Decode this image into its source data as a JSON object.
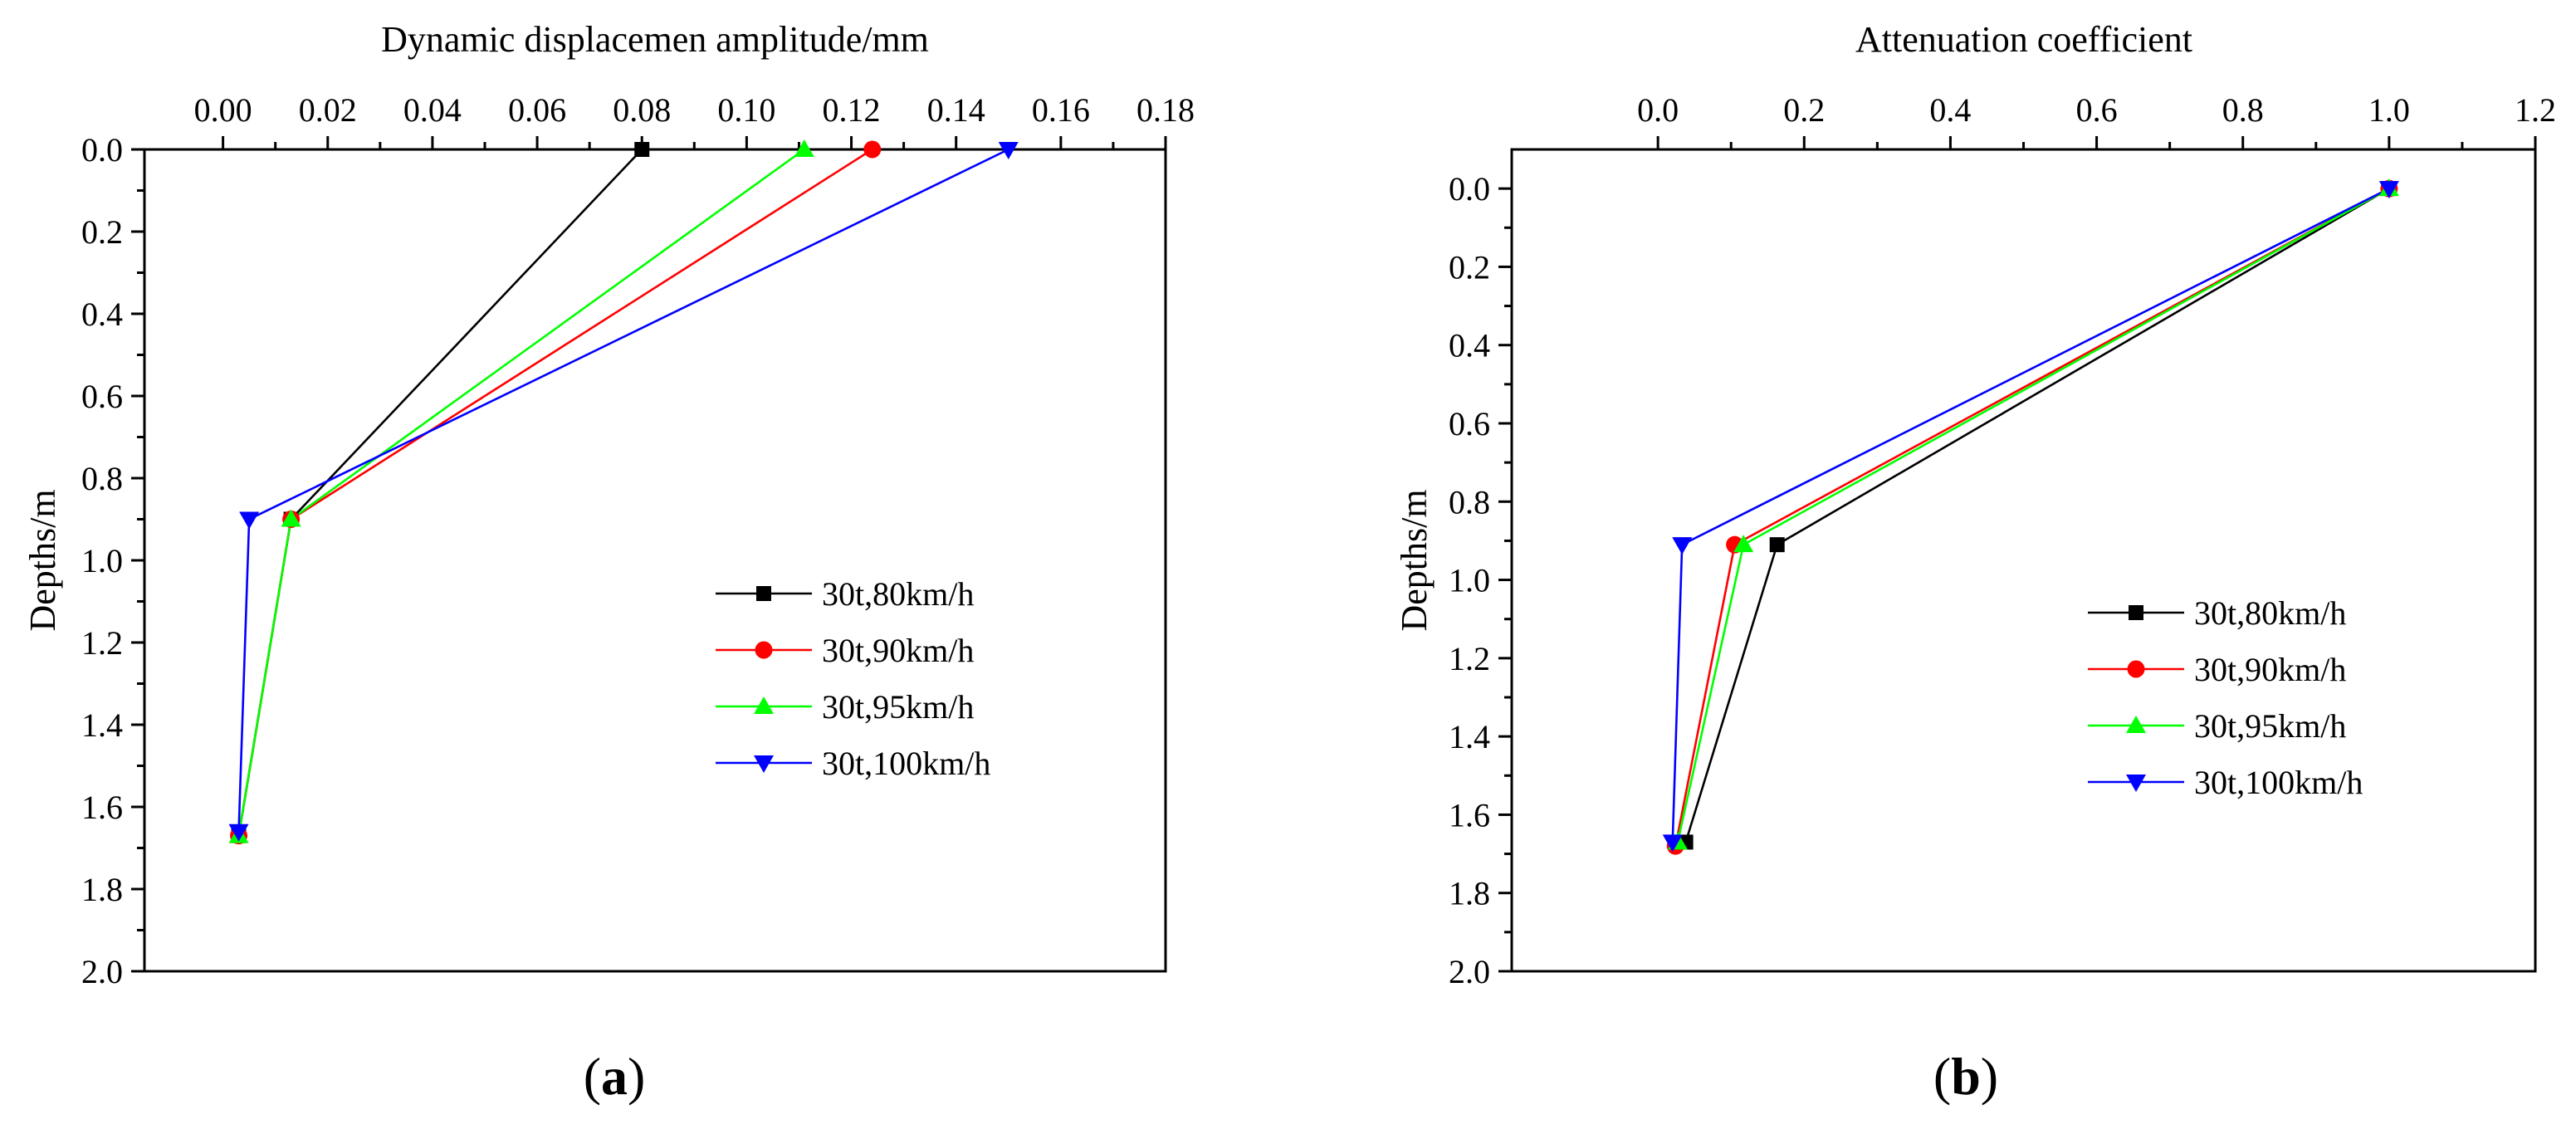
{
  "chart_data": [
    {
      "id": "a",
      "type": "line",
      "panel_label": "(a)",
      "panel_letter": "a",
      "xlabel": "Dynamic displacemen amplitude/mm",
      "ylabel": "Depths/m",
      "xlim": [
        -0.015,
        0.18
      ],
      "ylim": [
        0,
        2.0
      ],
      "x_ticks": [
        0.0,
        0.02,
        0.04,
        0.06,
        0.08,
        0.1,
        0.12,
        0.14,
        0.16,
        0.18
      ],
      "x_tick_labels": [
        "0.00",
        "0.02",
        "0.04",
        "0.06",
        "0.08",
        "0.10",
        "0.12",
        "0.14",
        "0.16",
        "0.18"
      ],
      "y_ticks": [
        0.0,
        0.2,
        0.4,
        0.6,
        0.8,
        1.0,
        1.2,
        1.4,
        1.6,
        1.8,
        2.0
      ],
      "y_tick_labels": [
        "0.0",
        "0.2",
        "0.4",
        "0.6",
        "0.8",
        "1.0",
        "1.2",
        "1.4",
        "1.6",
        "1.8",
        "2.0"
      ],
      "legend_position": "center-right",
      "series": [
        {
          "name": "30t,80km/h",
          "color": "#000000",
          "marker": "square",
          "points": [
            [
              0.08,
              0.0
            ],
            [
              0.013,
              0.9
            ],
            [
              0.003,
              1.67
            ]
          ]
        },
        {
          "name": "30t,90km/h",
          "color": "#ff0000",
          "marker": "circle",
          "points": [
            [
              0.124,
              0.0
            ],
            [
              0.013,
              0.9
            ],
            [
              0.003,
              1.67
            ]
          ]
        },
        {
          "name": "30t,95km/h",
          "color": "#00ff00",
          "marker": "triangle-up",
          "points": [
            [
              0.111,
              0.0
            ],
            [
              0.013,
              0.9
            ],
            [
              0.003,
              1.67
            ]
          ]
        },
        {
          "name": "30t,100km/h",
          "color": "#0000ff",
          "marker": "triangle-down",
          "points": [
            [
              0.15,
              0.0
            ],
            [
              0.005,
              0.9
            ],
            [
              0.003,
              1.66
            ]
          ]
        }
      ]
    },
    {
      "id": "b",
      "type": "line",
      "panel_label": "(b)",
      "panel_letter": "b",
      "xlabel": "Attenuation coefficient",
      "ylabel": "Depths/m",
      "xlim": [
        -0.2,
        1.2
      ],
      "ylim": [
        -0.1,
        2.0
      ],
      "x_ticks": [
        0.0,
        0.2,
        0.4,
        0.6,
        0.8,
        1.0,
        1.2
      ],
      "x_tick_labels": [
        "0.0",
        "0.2",
        "0.4",
        "0.6",
        "0.8",
        "1.0",
        "1.2"
      ],
      "y_ticks": [
        0.0,
        0.2,
        0.4,
        0.6,
        0.8,
        1.0,
        1.2,
        1.4,
        1.6,
        1.8,
        2.0
      ],
      "y_tick_labels": [
        "0.0",
        "0.2",
        "0.4",
        "0.6",
        "0.8",
        "1.0",
        "1.2",
        "1.4",
        "1.6",
        "1.8",
        "2.0"
      ],
      "legend_position": "center-right",
      "series": [
        {
          "name": "30t,80km/h",
          "color": "#000000",
          "marker": "square",
          "points": [
            [
              1.0,
              0.0
            ],
            [
              0.163,
              0.91
            ],
            [
              0.038,
              1.67
            ]
          ]
        },
        {
          "name": "30t,90km/h",
          "color": "#ff0000",
          "marker": "circle",
          "points": [
            [
              1.0,
              0.0
            ],
            [
              0.105,
              0.91
            ],
            [
              0.024,
              1.68
            ]
          ]
        },
        {
          "name": "30t,95km/h",
          "color": "#00ff00",
          "marker": "triangle-up",
          "points": [
            [
              1.0,
              0.0
            ],
            [
              0.117,
              0.91
            ],
            [
              0.027,
              1.67
            ]
          ]
        },
        {
          "name": "30t,100km/h",
          "color": "#0000ff",
          "marker": "triangle-down",
          "points": [
            [
              1.0,
              0.0
            ],
            [
              0.033,
              0.91
            ],
            [
              0.02,
              1.67
            ]
          ]
        }
      ]
    }
  ]
}
